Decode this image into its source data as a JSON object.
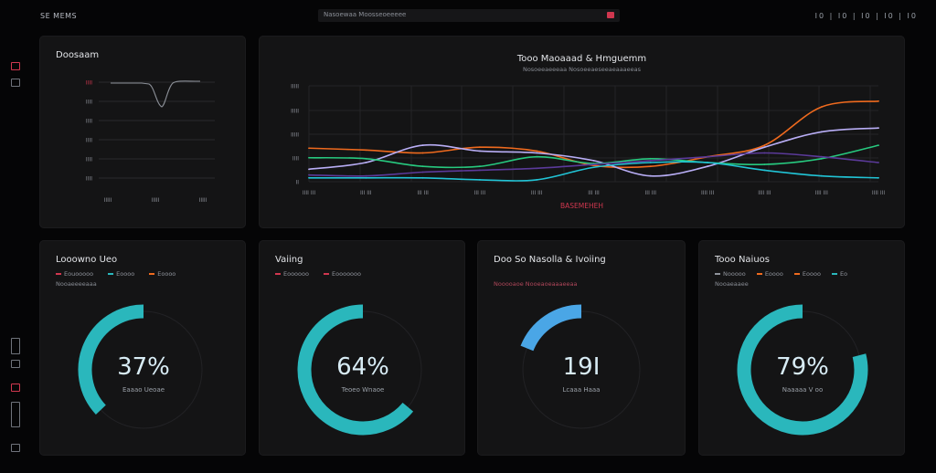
{
  "app": {
    "brand": "SE MEMS",
    "search_text": "Nasoewaa Moosseoeeeee",
    "nav": "I0 | I0 | I0 | I0 | I0"
  },
  "colors": {
    "orange": "#ef6a1e",
    "lavender": "#b9aef6",
    "green": "#27c97f",
    "cyan": "#21c4d6",
    "white": "#e8e8ee",
    "purple": "#5b3a9a",
    "red": "#d0374f",
    "teal_gauge": "#2ab7bc",
    "blue_gauge": "#4aa6e6"
  },
  "mini_chart": {
    "title": "Doosaam",
    "y_ticks": [
      "IIII",
      "IIII",
      "IIII",
      "IIII",
      "IIII",
      "IIII"
    ],
    "x_ticks": [
      "IIIII",
      "IIIII",
      "IIIII"
    ]
  },
  "main_chart": {
    "title": "Tooo Maoaaad & Hmguemm",
    "subtitle": "Nosoeeaeeeaa Nosoeeaeseeaeaaaeeas",
    "xlabel": "BASEMEHEH",
    "y_ticks": [
      "IIIII",
      "IIIII",
      "IIIII",
      "IIII",
      "II"
    ],
    "x_ticks": [
      "IIII III",
      "III III",
      "III III",
      "III III",
      "III III",
      "III III",
      "III III",
      "IIII III",
      "IIII III",
      "IIII III",
      "IIII III"
    ]
  },
  "chart_data": {
    "type": "line",
    "x": [
      0,
      1,
      2,
      3,
      4,
      5,
      6,
      7,
      8,
      9,
      10
    ],
    "series": [
      {
        "color": "#ef6a1e",
        "values": [
          17.5,
          16.5,
          15,
          18,
          16,
          8.5,
          8,
          13,
          19,
          39,
          42
        ]
      },
      {
        "color": "#b9aef6",
        "values": [
          6.5,
          10,
          19,
          16,
          15,
          11,
          3,
          8,
          18,
          26,
          28
        ]
      },
      {
        "color": "#27c97f",
        "values": [
          12.5,
          12,
          8,
          8,
          13,
          9.5,
          12,
          10,
          9,
          12,
          19
        ]
      },
      {
        "color": "#21c4d6",
        "values": [
          2,
          2,
          2,
          1,
          1,
          7.5,
          10,
          10,
          6,
          3,
          2
        ]
      },
      {
        "color": "#5b3a9a",
        "values": [
          3.5,
          3,
          5,
          6,
          7,
          9,
          11,
          13,
          15,
          13,
          10
        ]
      }
    ],
    "ylim": [
      0,
      50
    ]
  },
  "gauges": [
    {
      "title": "Looowno Ueo",
      "legend": [
        "Eouooooo",
        "Eoooo",
        "Eoooo"
      ],
      "sub": "Nooaeeeeaaa",
      "value_text": "37%",
      "label": "Eaaao Ueoae",
      "percent": 37,
      "color": "#2ab7bc"
    },
    {
      "title": "Vaiing",
      "legend": [
        "Eoooooo",
        "Eooooooo"
      ],
      "sub": "",
      "value_text": "64%",
      "label": "Teoeo Wnaoe",
      "percent": 64,
      "color": "#2ab7bc"
    },
    {
      "title": "Doo So Nasolla & Ivoiing",
      "legend": [],
      "sub": "Nooooaoe Nooeaoeaaaeeaa",
      "value_text": "19I",
      "label": "Lcaaa Haaa",
      "percent": 19,
      "color": "#4aa6e6"
    },
    {
      "title": "Tooo Naiuos",
      "legend": [
        "Nooooo",
        "Eoooo",
        "Eoooo",
        "Eo"
      ],
      "sub": "Nooaeaaee",
      "value_text": "79%",
      "label": "Naaaaa V oo",
      "percent": 79,
      "color": "#2ab7bc"
    }
  ]
}
